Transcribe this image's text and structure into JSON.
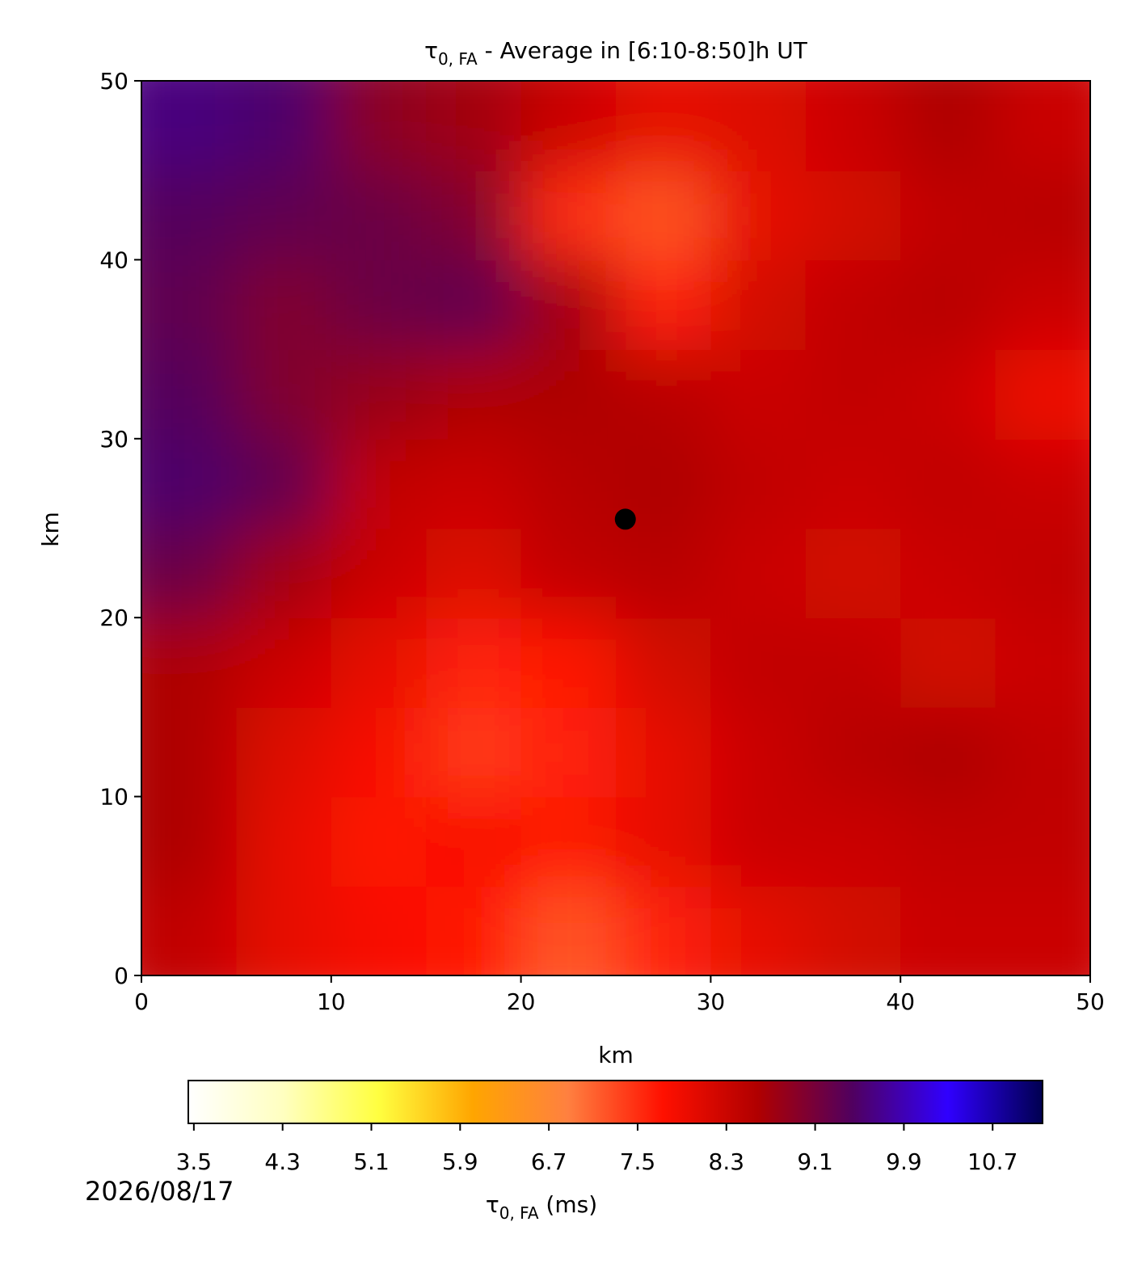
{
  "chart_data": {
    "type": "heatmap",
    "title_symbol": "τ",
    "title_subscript": "0, FA",
    "title_rest": " - Average in [6:10-8:50]h UT",
    "xlabel": "km",
    "ylabel": "km",
    "xlim": [
      0,
      50
    ],
    "ylim": [
      0,
      50
    ],
    "xticks": [
      0,
      10,
      20,
      30,
      40,
      50
    ],
    "yticks": [
      0,
      10,
      20,
      30,
      40,
      50
    ],
    "x_edges": [
      0,
      5,
      10,
      15,
      20,
      25,
      30,
      35,
      40,
      45,
      50
    ],
    "y_edges": [
      0,
      5,
      10,
      15,
      20,
      25,
      30,
      35,
      40,
      45,
      50
    ],
    "values": [
      [
        8.4,
        8.0,
        7.8,
        7.7,
        7.2,
        7.6,
        8.0,
        8.2,
        8.3,
        8.3
      ],
      [
        8.6,
        8.0,
        7.7,
        7.8,
        7.7,
        8.0,
        8.3,
        8.3,
        8.4,
        8.4
      ],
      [
        8.6,
        8.1,
        7.8,
        7.4,
        7.6,
        8.0,
        8.3,
        8.5,
        8.6,
        8.4
      ],
      [
        8.6,
        8.3,
        8.0,
        7.6,
        7.7,
        8.2,
        8.4,
        8.4,
        8.2,
        8.3
      ],
      [
        9.2,
        8.7,
        8.3,
        8.1,
        8.4,
        8.5,
        8.3,
        8.2,
        8.3,
        8.4
      ],
      [
        9.5,
        9.3,
        8.4,
        8.3,
        8.5,
        8.6,
        8.4,
        8.3,
        8.4,
        8.3
      ],
      [
        9.4,
        9.0,
        8.8,
        8.6,
        8.6,
        8.5,
        8.3,
        8.4,
        8.3,
        7.9
      ],
      [
        9.3,
        9.0,
        9.2,
        9.3,
        8.7,
        7.6,
        8.2,
        8.4,
        8.5,
        8.3
      ],
      [
        9.4,
        9.3,
        9.2,
        9.0,
        7.5,
        7.2,
        8.0,
        8.2,
        8.4,
        8.5
      ],
      [
        9.6,
        9.5,
        8.9,
        8.7,
        8.3,
        8.0,
        8.1,
        8.3,
        8.6,
        8.3
      ]
    ],
    "point": {
      "x": 25.5,
      "y": 25.5,
      "color": "#000000"
    },
    "colormap": [
      "#ffffff",
      "#ffffc0",
      "#ffff40",
      "#ffa500",
      "#ff8040",
      "#ff1000",
      "#b00000",
      "#500060",
      "#3000ff",
      "#000050"
    ],
    "clim": [
      3.45,
      11.15
    ],
    "cticks": [
      3.5,
      4.3,
      5.1,
      5.9,
      6.7,
      7.5,
      8.3,
      9.1,
      9.9,
      10.7
    ],
    "clabel_symbol": "τ",
    "clabel_subscript": "0, FA",
    "clabel_rest": " (ms)",
    "date": "2026/08/17"
  }
}
